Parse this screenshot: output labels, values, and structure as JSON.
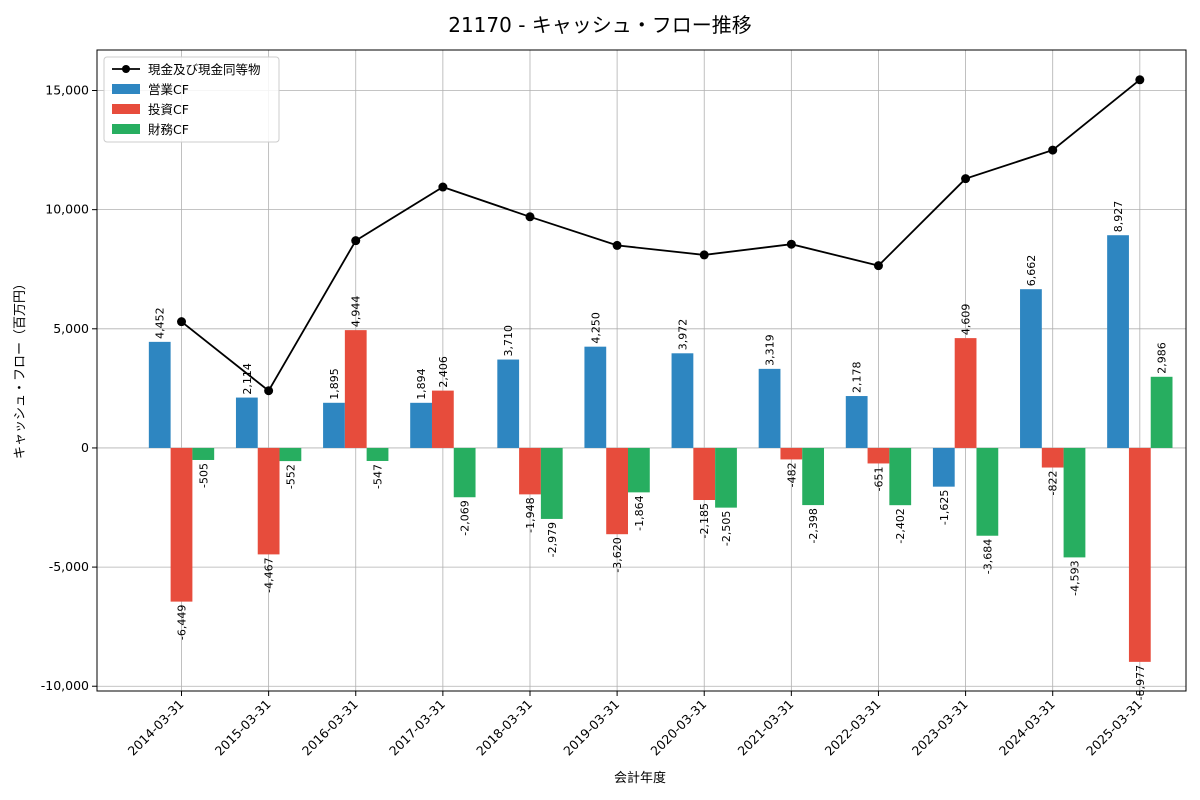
{
  "chart_data": {
    "type": "bar",
    "title": "21170 - キャッシュ・フロー推移",
    "xlabel": "会計年度",
    "ylabel": "キャッシュ・フロー（百万円）",
    "ylim": [
      -10200,
      16700
    ],
    "yticks": [
      -10000,
      -5000,
      0,
      5000,
      10000,
      15000
    ],
    "ytick_labels": [
      "-10,000",
      "-5,000",
      "0",
      "5,000",
      "10,000",
      "15,000"
    ],
    "grid": true,
    "legend_position": "top-left",
    "categories": [
      "2014-03-31",
      "2015-03-31",
      "2016-03-31",
      "2017-03-31",
      "2018-03-31",
      "2019-03-31",
      "2020-03-31",
      "2021-03-31",
      "2022-03-31",
      "2023-03-31",
      "2024-03-31",
      "2025-03-31"
    ],
    "series": [
      {
        "name": "営業CF",
        "kind": "bar",
        "color": "#2e86c1",
        "values": [
          4452,
          2114,
          1895,
          1894,
          3710,
          4250,
          3972,
          3319,
          2178,
          -1625,
          6662,
          8927
        ],
        "labels": [
          "4,452",
          "2,114",
          "1,895",
          "1,894",
          "3,710",
          "4,250",
          "3,972",
          "3,319",
          "2,178",
          "-1,625",
          "6,662",
          "8,927"
        ]
      },
      {
        "name": "投資CF",
        "kind": "bar",
        "color": "#e74c3c",
        "values": [
          -6449,
          -4467,
          4944,
          2406,
          -1948,
          -3620,
          -2185,
          -482,
          -651,
          4609,
          -822,
          -8977
        ],
        "labels": [
          "-6,449",
          "-4,467",
          "4,944",
          "2,406",
          "-1,948",
          "-3,620",
          "-2,185",
          "-482",
          "-651",
          "4,609",
          "-822",
          "-8,977"
        ]
      },
      {
        "name": "財務CF",
        "kind": "bar",
        "color": "#27ae60",
        "values": [
          -505,
          -552,
          -547,
          -2069,
          -2979,
          -1864,
          -2505,
          -2398,
          -2402,
          -3684,
          -4593,
          2986
        ],
        "labels": [
          "-505",
          "-552",
          "-547",
          "-2,069",
          "-2,979",
          "-1,864",
          "-2,505",
          "-2,398",
          "-2,402",
          "-3,684",
          "-4,593",
          "2,986"
        ]
      },
      {
        "name": "現金及び現金同等物",
        "kind": "line",
        "color": "#000000",
        "values": [
          5300,
          2400,
          8700,
          10950,
          9700,
          8500,
          8100,
          8550,
          7650,
          11300,
          12500,
          15450
        ]
      }
    ]
  }
}
